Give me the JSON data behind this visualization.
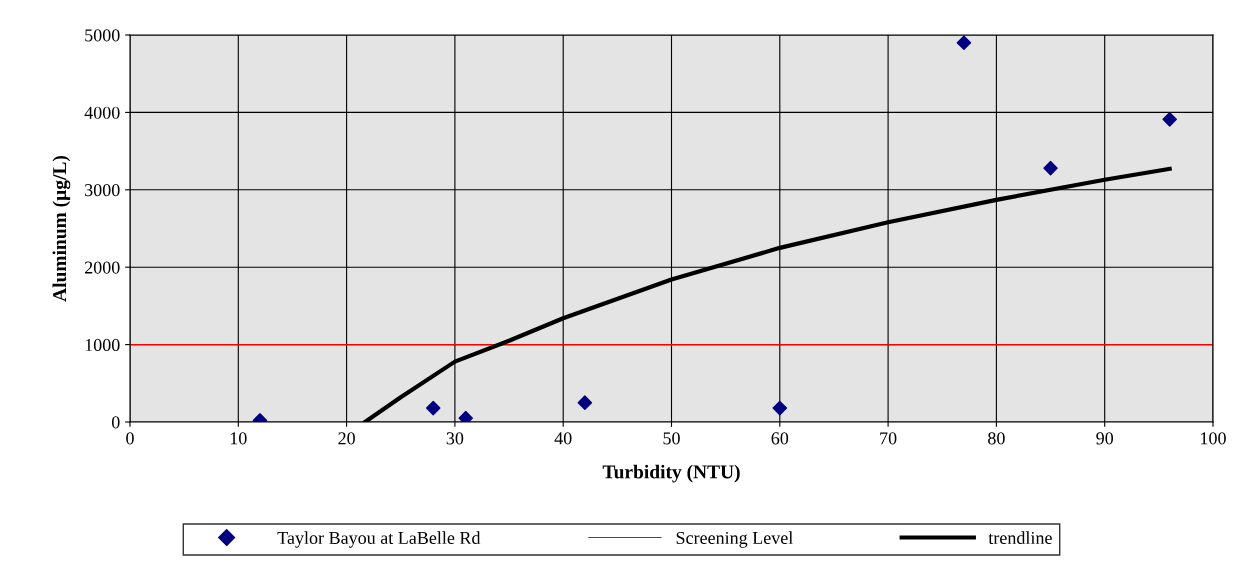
{
  "chart_data": {
    "type": "scatter",
    "xlabel": "Turbidity (NTU)",
    "ylabel": "Aluminum (µg/L)",
    "xlim": [
      0,
      100
    ],
    "xticks": [
      0,
      10,
      20,
      30,
      40,
      50,
      60,
      70,
      80,
      90,
      100
    ],
    "ylim": [
      0,
      5000
    ],
    "yticks": [
      0,
      1000,
      2000,
      3000,
      4000,
      5000
    ],
    "grid": true,
    "legend": "bottom",
    "series": [
      {
        "name": "Taylor Bayou at LaBelle Rd",
        "color": "#000080",
        "marker": "diamond",
        "x": [
          12,
          28,
          31,
          42,
          60,
          77,
          85,
          96
        ],
        "values": [
          20,
          180,
          50,
          250,
          180,
          4900,
          3280,
          3910
        ]
      },
      {
        "name": "trendline",
        "type": "line",
        "color": "#000000",
        "line_style": "solid",
        "marker": "none",
        "x": [
          21.7,
          25,
          30,
          35,
          40,
          50,
          60,
          70,
          80,
          90,
          96
        ],
        "values": [
          0,
          320,
          780,
          1050,
          1340,
          1840,
          2250,
          2580,
          2870,
          3130,
          3270
        ]
      }
    ],
    "ref_lines": [
      {
        "axis": "y",
        "value": 1000,
        "label": "Screening Level",
        "color": "#ff0000"
      }
    ]
  }
}
